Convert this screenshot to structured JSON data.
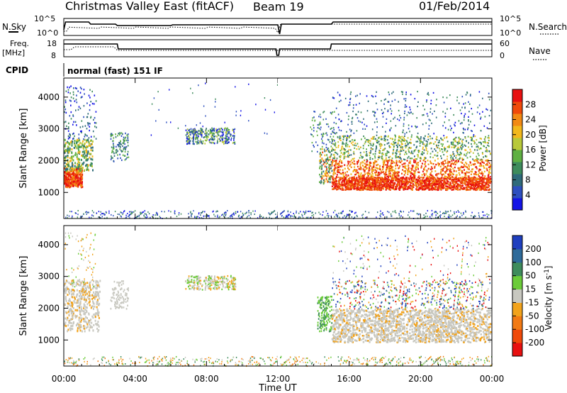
{
  "header": {
    "title": "Christmas Valley East (fitACF)",
    "beam": "Beam 19",
    "date": "01/Feb/2014"
  },
  "top_panels": {
    "nsky_label": "N.Sky",
    "nsky_ticks": [
      "10^5",
      "10^0"
    ],
    "nsearch_label": "N.Search",
    "nsearch_ticks": [
      "10^5",
      "10^0"
    ],
    "freq_label_line1": "Freq.",
    "freq_label_line2": "[MHz]",
    "freq_ticks": [
      "18",
      "8"
    ],
    "nave_label": "Nave",
    "nave_ticks": [
      "60",
      "0"
    ],
    "cpid_label": "CPID",
    "cpid_text": "normal (fast) 151 IF"
  },
  "chart_data": [
    {
      "type": "heatmap",
      "name": "power",
      "ylabel": "Slant Range [km]",
      "xlabel": "Time UT",
      "x_ticks": [
        "00:00",
        "04:00",
        "08:00",
        "12:00",
        "16:00",
        "20:00",
        "00:00"
      ],
      "y_ticks": [
        1000,
        2000,
        3000,
        4000
      ],
      "xlim_hours": [
        0,
        24
      ],
      "ylim_km": [
        180,
        4600
      ],
      "colorbar": {
        "label": "Power [dB]",
        "ticks": [
          4,
          8,
          12,
          16,
          20,
          24,
          28
        ],
        "range": [
          0,
          32
        ],
        "colors": [
          "#1414e6",
          "#2d4fbf",
          "#2f6b7a",
          "#3e8c5c",
          "#5fb043",
          "#b8c93a",
          "#f2b81c",
          "#f28a14",
          "#f04a0a",
          "#e81010"
        ]
      }
    },
    {
      "type": "heatmap",
      "name": "velocity",
      "ylabel": "Slant Range [km]",
      "xlabel": "Time UT",
      "x_ticks": [
        "00:00",
        "04:00",
        "08:00",
        "12:00",
        "16:00",
        "20:00",
        "00:00"
      ],
      "y_ticks": [
        1000,
        2000,
        3000,
        4000
      ],
      "xlim_hours": [
        0,
        24
      ],
      "ylim_km": [
        180,
        4600
      ],
      "colorbar": {
        "label": "Velocity [m s^-1]",
        "ticks": [
          "200",
          "100",
          "50",
          "15",
          "-15",
          "-50",
          "-100",
          "-200"
        ],
        "colors": [
          "#1f3fbf",
          "#2f6b9a",
          "#3e8c5c",
          "#6ccc3a",
          "#c8c8c0",
          "#f2a31c",
          "#f27a14",
          "#f04a0a",
          "#e81010"
        ]
      }
    }
  ]
}
